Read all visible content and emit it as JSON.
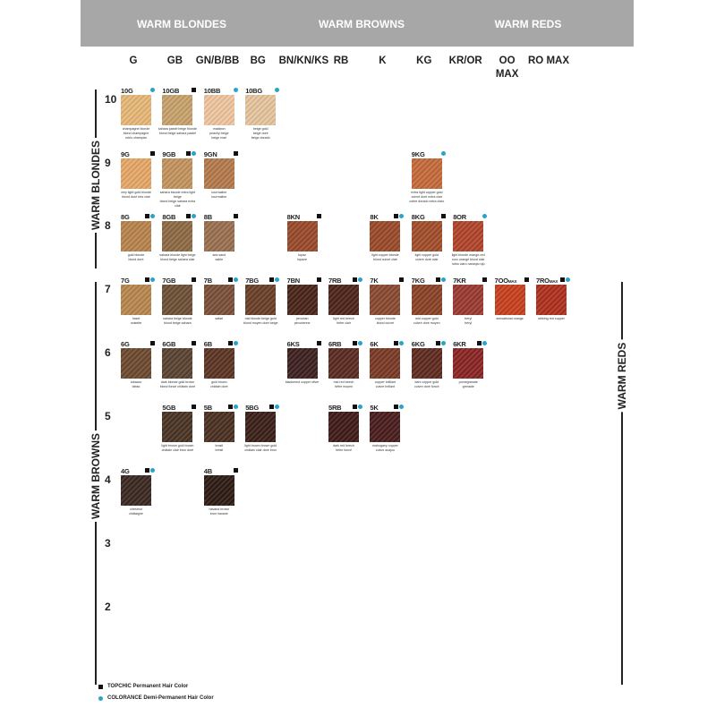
{
  "groups": [
    "WARM BLONDES",
    "WARM BROWNS",
    "WARM REDS"
  ],
  "columns": [
    "G",
    "GB",
    "GN/B/BB",
    "BG",
    "BN/KN/KS",
    "RB",
    "K",
    "KG",
    "KR/OR",
    "OO MAX",
    "RO MAX"
  ],
  "levels": [
    "10",
    "9",
    "8",
    "7",
    "6",
    "5",
    "4",
    "3",
    "2"
  ],
  "side_labels": {
    "warm_blondes": "WARM BLONDES",
    "warm_browns": "WARM BROWNS",
    "warm_reds": "WARM REDS"
  },
  "colors": {
    "header": "#a7a7a7",
    "topchic": "#111111",
    "colorance": "#2aa3c8"
  },
  "legend": [
    {
      "icon": "black-square",
      "label": "TOPCHIC Permanent Hair Color"
    },
    {
      "icon": "blue-dot",
      "label": "COLORANCE Demi-Permanent Hair Color"
    }
  ],
  "shades": [
    {
      "level": "10",
      "col": 0,
      "code": "10G",
      "tc": false,
      "co": true,
      "color": "#e8b878",
      "caption": "champagne blonde\nblond champagne\nrubio champán"
    },
    {
      "level": "10",
      "col": 1,
      "code": "10GB",
      "tc": true,
      "co": false,
      "color": "#c9a26c",
      "caption": "sahara pastel beige blonde\nblond beige sahara pastel"
    },
    {
      "level": "10",
      "col": 2,
      "code": "10BB",
      "tc": false,
      "co": true,
      "color": "#f0c6a0",
      "caption": "malabon\npeachy beige\nbeige rosé"
    },
    {
      "level": "10",
      "col": 3,
      "code": "10BG",
      "tc": false,
      "co": true,
      "color": "#e6c59e",
      "caption": "beige gold\nbeige doré\nbeige dorado"
    },
    {
      "level": "9",
      "col": 0,
      "code": "9G",
      "tc": true,
      "co": false,
      "color": "#e7a866",
      "caption": "very light gold blonde\nblond doré très clair"
    },
    {
      "level": "9",
      "col": 1,
      "code": "9GB",
      "tc": true,
      "co": true,
      "color": "#c4945e",
      "caption": "sahara blonde extra light beige\nblond beige sahara extra clair"
    },
    {
      "level": "9",
      "col": 2,
      "code": "9GN",
      "tc": true,
      "co": false,
      "color": "#b57a4c",
      "caption": "tourmaline\ntourmaline"
    },
    {
      "level": "9",
      "col": 7,
      "code": "9KG",
      "tc": false,
      "co": true,
      "color": "#c56a3a",
      "caption": "extra light copper gold\ncuivré doré extra clair\ncobre dorado extra claro"
    },
    {
      "level": "8",
      "col": 0,
      "code": "8G",
      "tc": true,
      "co": true,
      "color": "#b8834c",
      "caption": "gold blonde\nblond doré"
    },
    {
      "level": "8",
      "col": 1,
      "code": "8GB",
      "tc": true,
      "co": true,
      "color": "#8e6a44",
      "caption": "sahara blonde light beige\nblond beige sahara clair"
    },
    {
      "level": "8",
      "col": 2,
      "code": "8B",
      "tc": true,
      "co": false,
      "color": "#9a7050",
      "caption": "sea sand\nsable"
    },
    {
      "level": "8",
      "col": 4,
      "code": "8KN",
      "tc": true,
      "co": false,
      "color": "#9a4a2a",
      "caption": "topaz\ntopaze"
    },
    {
      "level": "8",
      "col": 6,
      "code": "8K",
      "tc": true,
      "co": true,
      "color": "#9a4a28",
      "caption": "light copper blonde\nblond cuivré clair"
    },
    {
      "level": "8",
      "col": 7,
      "code": "8KG",
      "tc": true,
      "co": false,
      "color": "#a24e2a",
      "caption": "light copper gold\ncuivré doré clair"
    },
    {
      "level": "8",
      "col": 8,
      "code": "8OR",
      "tc": false,
      "co": true,
      "color": "#b2442a",
      "caption": "light blonde orange-red\nroux orangé blond clair\nrubio claro naranja rojo"
    },
    {
      "level": "7",
      "col": 0,
      "code": "7G",
      "tc": true,
      "co": true,
      "color": "#b8874e",
      "caption": "hazel\nnoisette"
    },
    {
      "level": "7",
      "col": 1,
      "code": "7GB",
      "tc": true,
      "co": false,
      "color": "#6e5036",
      "caption": "sahara beige blonde\nblond beige sahara"
    },
    {
      "level": "7",
      "col": 2,
      "code": "7B",
      "tc": true,
      "co": true,
      "color": "#7a5038",
      "caption": "safari"
    },
    {
      "level": "7",
      "col": 3,
      "code": "7BG",
      "tc": true,
      "co": true,
      "color": "#6a4028",
      "caption": "mid blonde beige gold\nblond moyen doré beige"
    },
    {
      "level": "7",
      "col": 4,
      "code": "7BN",
      "tc": true,
      "co": false,
      "color": "#4a2418",
      "caption": "peruvian\npéruvienne"
    },
    {
      "level": "7",
      "col": 5,
      "code": "7RB",
      "tc": true,
      "co": true,
      "color": "#4e2418",
      "caption": "light red beech\nhêtre clair"
    },
    {
      "level": "7",
      "col": 6,
      "code": "7K",
      "tc": true,
      "co": false,
      "color": "#8a4a30",
      "caption": "copper blonde\nblond cuivré"
    },
    {
      "level": "7",
      "col": 7,
      "code": "7KG",
      "tc": true,
      "co": true,
      "color": "#8a4226",
      "caption": "mid copper gold\ncuivré doré moyen"
    },
    {
      "level": "7",
      "col": 8,
      "code": "7KR",
      "tc": true,
      "co": false,
      "color": "#9a3a30",
      "caption": "beryl\nbéryl"
    },
    {
      "level": "7",
      "col": 9,
      "code": "7OO",
      "suffix": "MAX",
      "tc": true,
      "co": false,
      "color": "#c8401e",
      "caption": "sensational orange"
    },
    {
      "level": "7",
      "col": 10,
      "code": "7RO",
      "suffix": "MAX",
      "tc": true,
      "co": true,
      "color": "#b0301c",
      "caption": "striking red copper"
    },
    {
      "level": "6",
      "col": 0,
      "code": "6G",
      "tc": true,
      "co": false,
      "color": "#6e4a30",
      "caption": "tobacco\ntabac"
    },
    {
      "level": "6",
      "col": 1,
      "code": "6GB",
      "tc": true,
      "co": false,
      "color": "#5a4230",
      "caption": "dark blonde gold brown\nblond foncé châtain doré"
    },
    {
      "level": "6",
      "col": 2,
      "code": "6B",
      "tc": true,
      "co": true,
      "color": "#5c3424",
      "caption": "gold brown\nchâtain doré"
    },
    {
      "level": "6",
      "col": 4,
      "code": "6KS",
      "tc": true,
      "co": false,
      "color": "#3e2020",
      "caption": "blackened copper silver"
    },
    {
      "level": "6",
      "col": 5,
      "code": "6RB",
      "tc": true,
      "co": true,
      "color": "#5a2a20",
      "caption": "mid red beech\nhêtre moyen"
    },
    {
      "level": "6",
      "col": 6,
      "code": "6K",
      "tc": true,
      "co": true,
      "color": "#7a3a26",
      "caption": "copper brilliant\ncuivre brillant"
    },
    {
      "level": "6",
      "col": 7,
      "code": "6KG",
      "tc": true,
      "co": true,
      "color": "#5e2a20",
      "caption": "dark copper gold\ncuivre doré foncé"
    },
    {
      "level": "6",
      "col": 8,
      "code": "6KR",
      "tc": true,
      "co": true,
      "color": "#8a2424",
      "caption": "pomegranate\ngrenade"
    },
    {
      "level": "5",
      "col": 1,
      "code": "5GB",
      "tc": true,
      "co": false,
      "color": "#4a3424",
      "caption": "light brown gold brown\nchâtain clair brun doré"
    },
    {
      "level": "5",
      "col": 2,
      "code": "5B",
      "tc": true,
      "co": true,
      "color": "#4a3020",
      "caption": "brazil\nbrésil"
    },
    {
      "level": "5",
      "col": 3,
      "code": "5BG",
      "tc": true,
      "co": true,
      "color": "#3a2018",
      "caption": "light brown brown gold\nchâtain clair doré brun"
    },
    {
      "level": "5",
      "col": 5,
      "code": "5RB",
      "tc": true,
      "co": true,
      "color": "#3e1a18",
      "caption": "dark red beech\nhêtre foncé"
    },
    {
      "level": "5",
      "col": 6,
      "code": "5K",
      "tc": true,
      "co": true,
      "color": "#4a1c1c",
      "caption": "mahogany copper\ncuivre acajou"
    },
    {
      "level": "4",
      "col": 0,
      "code": "4G",
      "tc": true,
      "co": true,
      "color": "#3a2820",
      "caption": "chestnut\nchâtaigne"
    },
    {
      "level": "4",
      "col": 2,
      "code": "4B",
      "tc": true,
      "co": false,
      "color": "#2e1a14",
      "caption": "havana brown\nbrun havane"
    }
  ]
}
